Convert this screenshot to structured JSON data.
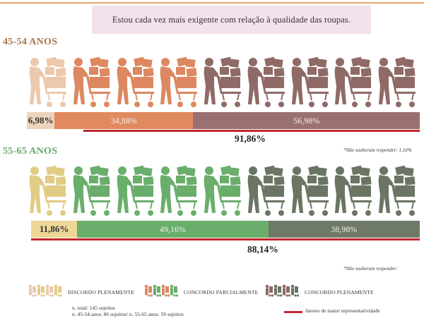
{
  "question": "Estou cada vez mais exigente com relação à qualidade das roupas.",
  "colors": {
    "top_line": "#e9a36c",
    "title_45": "#a8744a",
    "title_55": "#6aa86a",
    "red_line": "#c1272d"
  },
  "chart_data": [
    {
      "type": "bar",
      "title": "45-54 ANOS",
      "orientation": "horizontal-stacked",
      "segments": [
        {
          "name": "DISCORDO PLENAMENTE",
          "value": 6.98,
          "label": "6,98%",
          "color": "#ecd3bc",
          "fig_color": "#ecc9ad",
          "figures": 1
        },
        {
          "name": "CONCORDO PARCIALMENTE",
          "value": 34.88,
          "label": "34,88%",
          "color": "#e18a60",
          "fig_color": "#dd8860",
          "figures": 3
        },
        {
          "name": "CONCORDO PLENAMENTE",
          "value": 56.98,
          "label": "56,98%",
          "color": "#9a7070",
          "fig_color": "#8f6a66",
          "figures": 5
        }
      ],
      "total_label": "91,86%",
      "note": "*Não souberam responder: 1,16%"
    },
    {
      "type": "bar",
      "title": "55-65 ANOS",
      "orientation": "horizontal-stacked",
      "segments": [
        {
          "name": "DISCORDO PLENAMENTE",
          "value": 11.86,
          "label": "11,86%",
          "color": "#ecd796",
          "fig_color": "#e1cc86",
          "figures": 1
        },
        {
          "name": "CONCORDO PARCIALMENTE",
          "value": 49.16,
          "label": "49,16%",
          "color": "#6aae6c",
          "fig_color": "#6aae6c",
          "figures": 4
        },
        {
          "name": "CONCORDO PLENAMENTE",
          "value": 38.98,
          "label": "38,98%",
          "color": "#6e7a66",
          "fig_color": "#6a7563",
          "figures": 4
        }
      ],
      "total_label": "88,14%",
      "note": "*Não souberam responder:"
    }
  ],
  "legend": [
    {
      "label": "DISCORDO PLENAMENTE",
      "colors": [
        "#ecc9ad",
        "#e1cc86"
      ]
    },
    {
      "label": "CONCORDO PARCIALMENTE",
      "colors": [
        "#dd8860",
        "#6aae6c"
      ]
    },
    {
      "label": "CONCORDO PLENAMENTE",
      "colors": [
        "#8f6a66",
        "#6a7563"
      ]
    }
  ],
  "footnote": {
    "line1": "n. total: 145 sujeitos",
    "line2": "n. 45-54 anos: 86 sujeitos/ n. 55-65 anos: 59 sujeitos"
  },
  "red_key_label": "fatores de maior representatividade"
}
